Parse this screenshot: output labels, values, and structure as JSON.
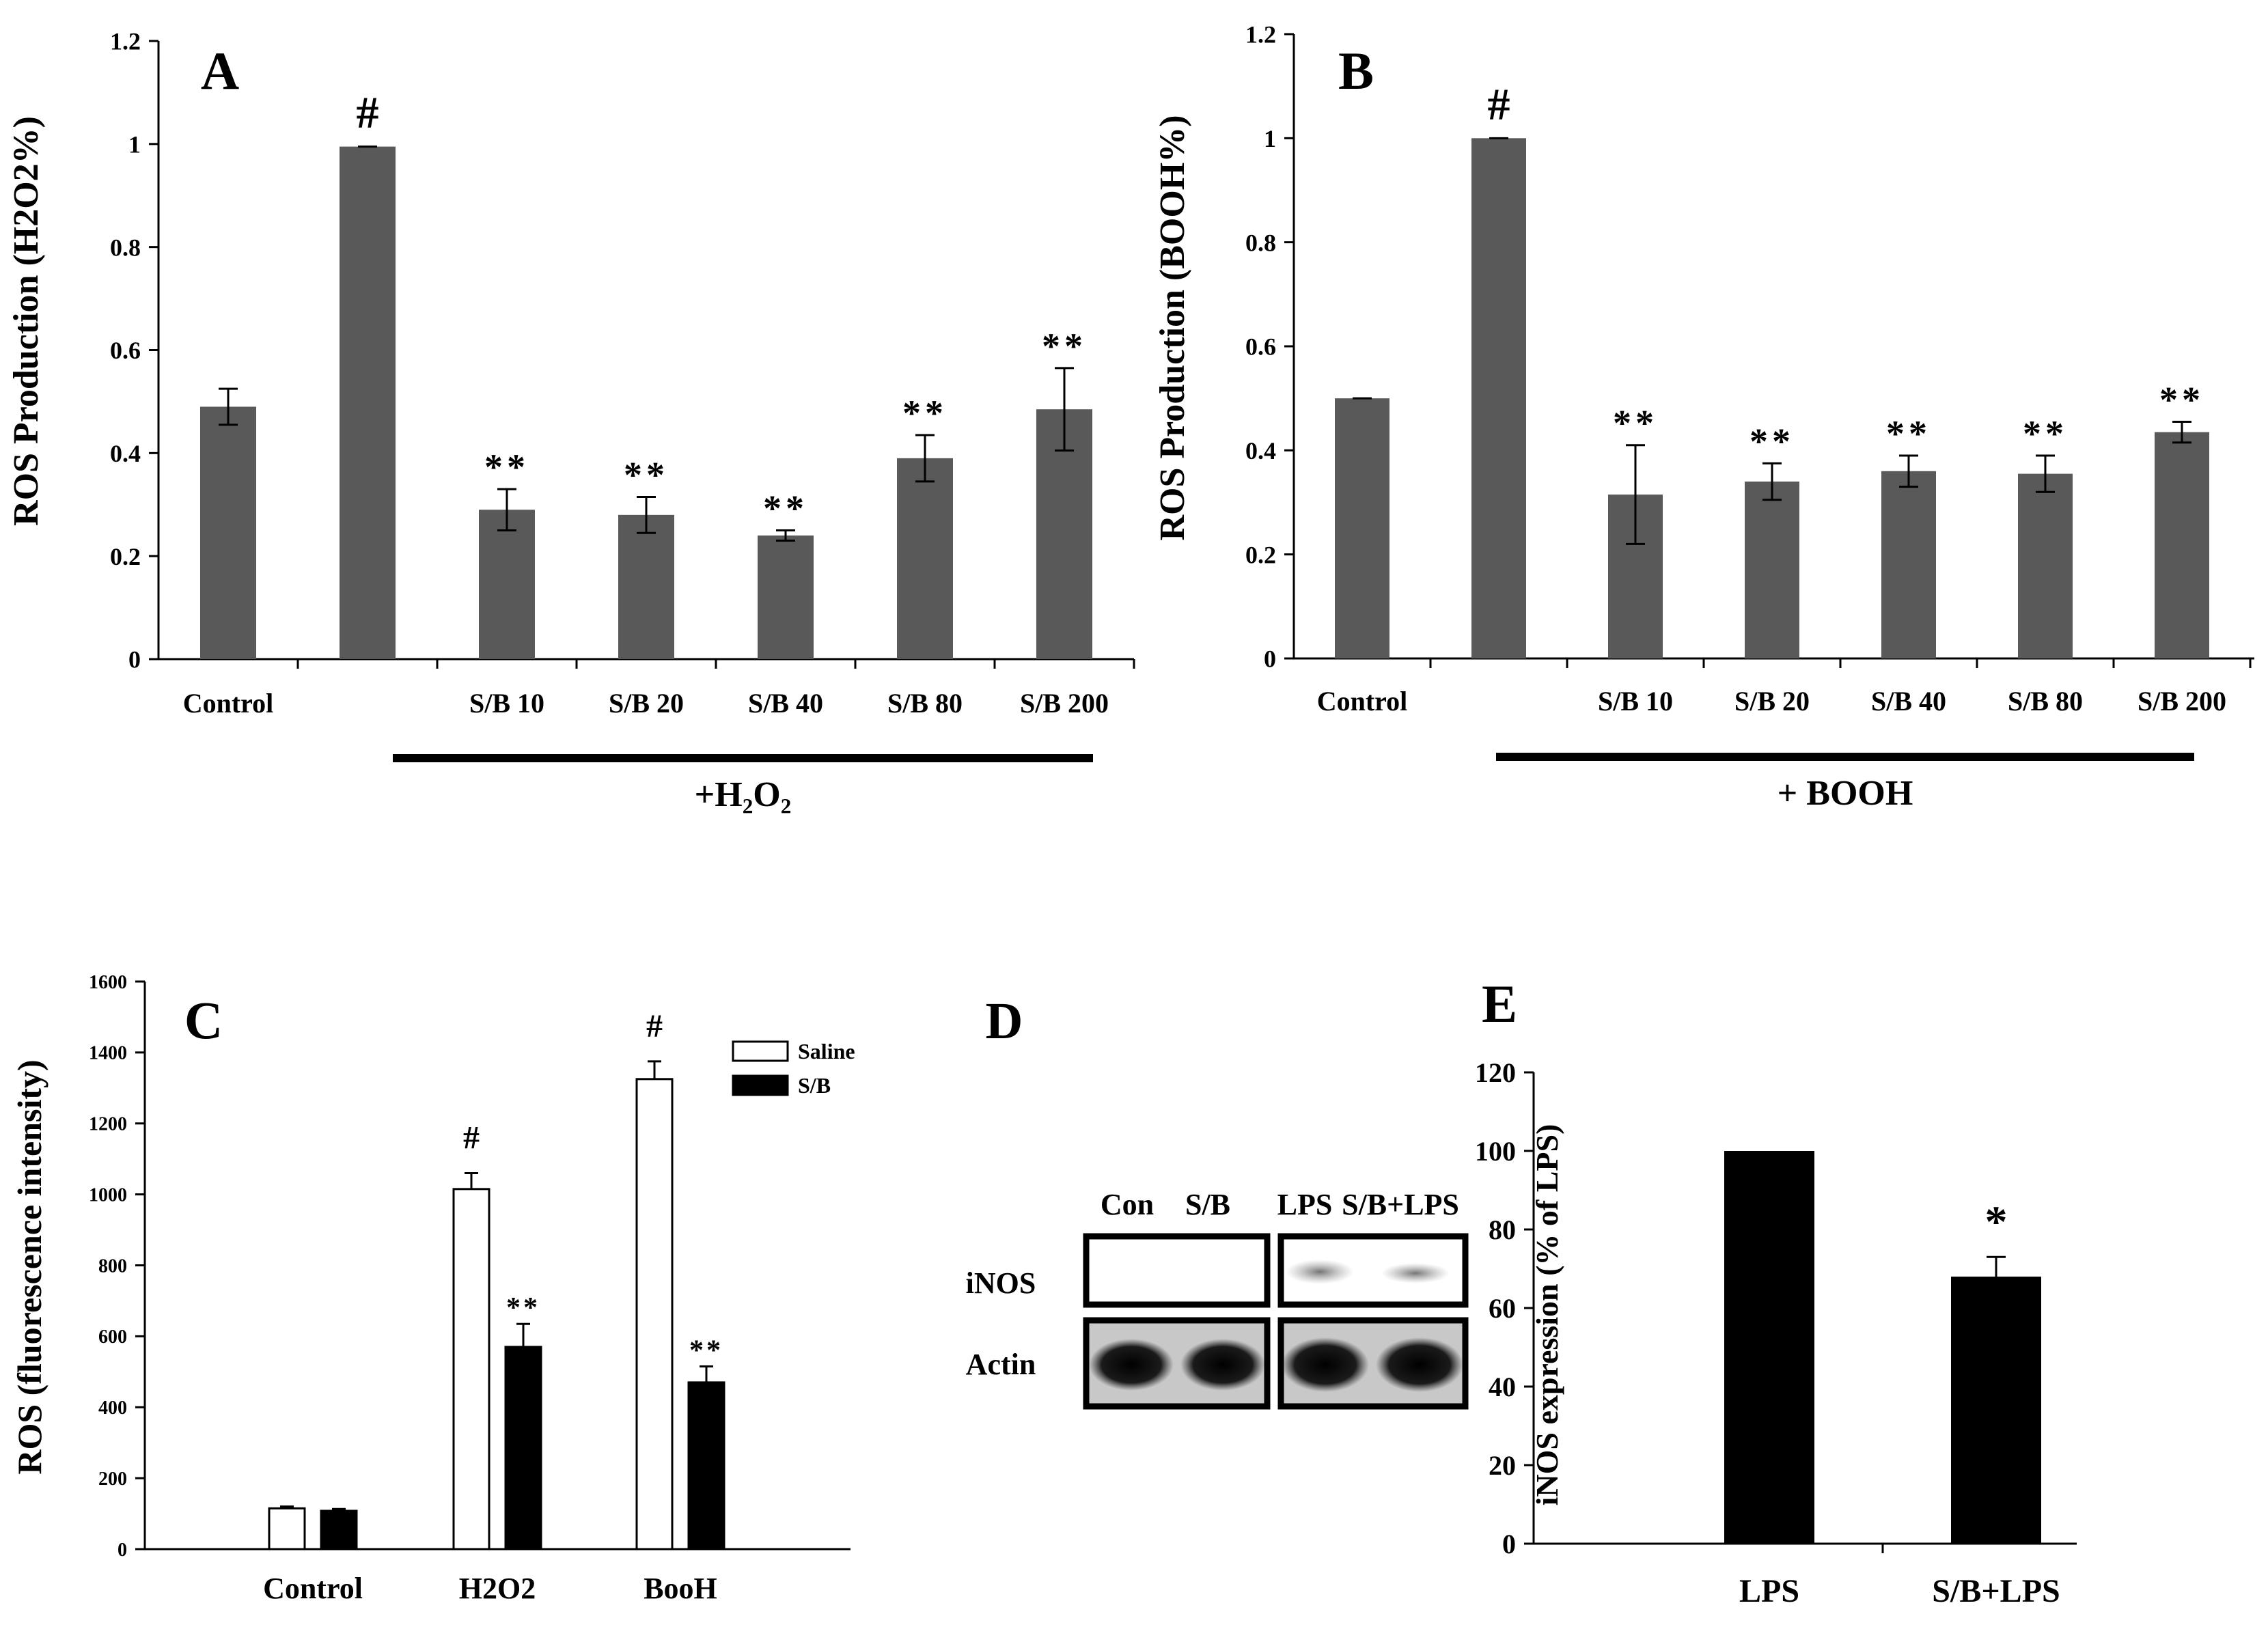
{
  "chart_data": [
    {
      "id": "A",
      "type": "bar",
      "panel_label": "A",
      "ylabel": "ROS Production (H2O2%)",
      "ylim": [
        0,
        1.2
      ],
      "yticks": [
        "0",
        "0.2",
        "0.4",
        "0.6",
        "0.8",
        "1",
        "1.2"
      ],
      "categories": [
        "Control",
        "",
        "S/B 10",
        "S/B 20",
        "S/B 40",
        "S/B 80",
        "S/B 200"
      ],
      "values": [
        0.49,
        0.995,
        0.29,
        0.28,
        0.24,
        0.39,
        0.485
      ],
      "errors": [
        0.035,
        0.0,
        0.04,
        0.035,
        0.01,
        0.045,
        0.08
      ],
      "annotations": [
        "",
        "#",
        "**",
        "**",
        "**",
        "**",
        "**"
      ],
      "bracket_label": "+H₂O₂"
    },
    {
      "id": "B",
      "type": "bar",
      "panel_label": "B",
      "ylabel": "ROS Production (BOOH%)",
      "ylim": [
        0,
        1.2
      ],
      "yticks": [
        "0",
        "0.2",
        "0.4",
        "0.6",
        "0.8",
        "1",
        "1.2"
      ],
      "categories": [
        "Control",
        "",
        "S/B 10",
        "S/B 20",
        "S/B 40",
        "S/B 80",
        "S/B 200"
      ],
      "values": [
        0.5,
        1.0,
        0.315,
        0.34,
        0.36,
        0.355,
        0.435
      ],
      "errors": [
        0.0,
        0.0,
        0.095,
        0.035,
        0.03,
        0.035,
        0.02
      ],
      "annotations": [
        "",
        "#",
        "**",
        "**",
        "**",
        "**",
        "**"
      ],
      "bracket_label": "+ BOOH"
    },
    {
      "id": "C",
      "type": "bar",
      "panel_label": "C",
      "ylabel": "ROS (fluorescence intensity)",
      "ylim": [
        0,
        1600
      ],
      "yticks": [
        "0",
        "200",
        "400",
        "600",
        "800",
        "1000",
        "1200",
        "1400",
        "1600"
      ],
      "categories": [
        "Control",
        "H2O2",
        "BooH"
      ],
      "legend_position": "top-right",
      "series": [
        {
          "name": "Saline",
          "color": "#ffffff",
          "values": [
            115,
            1015,
            1325
          ],
          "errors": [
            5,
            45,
            50
          ],
          "annotations": [
            "",
            "#",
            "#"
          ]
        },
        {
          "name": "S/B",
          "color": "#000000",
          "values": [
            108,
            570,
            470
          ],
          "errors": [
            5,
            65,
            45
          ],
          "annotations": [
            "",
            "**",
            "**"
          ]
        }
      ]
    },
    {
      "id": "E",
      "type": "bar",
      "panel_label": "E",
      "ylabel": "iNOS expression (% of LPS)",
      "ylim": [
        0,
        120
      ],
      "yticks": [
        "0",
        "20",
        "40",
        "60",
        "80",
        "100",
        "120"
      ],
      "categories": [
        "LPS",
        "S/B+LPS"
      ],
      "values": [
        100,
        68
      ],
      "errors": [
        0,
        5
      ],
      "annotations": [
        "",
        "*"
      ]
    }
  ],
  "blot": {
    "panel_label": "D",
    "lanes": [
      "Con",
      "S/B",
      "LPS",
      "S/B+LPS"
    ],
    "rows": [
      "iNOS",
      "Actin"
    ]
  }
}
